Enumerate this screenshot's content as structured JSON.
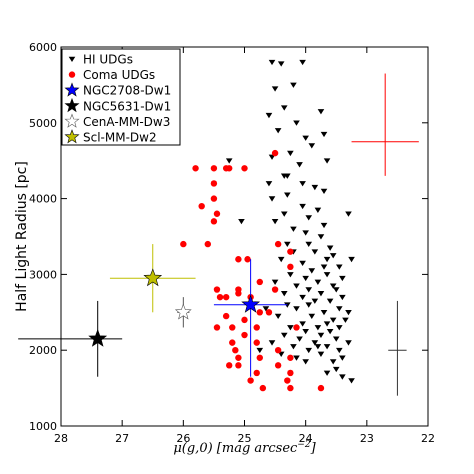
{
  "chart_data": {
    "type": "scatter",
    "xlabel": "μ(g,0) [mag arcsec",
    "xlabel_sup": "−2",
    "xlabel_close": "]",
    "ylabel": "Half Light Radius [pc]",
    "xlim": [
      28,
      22
    ],
    "ylim": [
      1000,
      6000
    ],
    "x_ticks": [
      28,
      27,
      26,
      25,
      24,
      23,
      22
    ],
    "y_ticks": [
      1000,
      2000,
      3000,
      4000,
      5000,
      6000
    ],
    "grid": false,
    "legend_position": "top-left",
    "legend": [
      {
        "label": "HI UDGs",
        "marker": "triangle-down",
        "color": "#000000"
      },
      {
        "label": "Coma UDGs",
        "marker": "circle",
        "color": "#ff0000"
      },
      {
        "label": "NGC2708-Dw1",
        "marker": "star",
        "color": "#0000ff"
      },
      {
        "label": "NGC5631-Dw1",
        "marker": "star",
        "color": "#000000"
      },
      {
        "label": "CenA-MM-Dw3",
        "marker": "star-open",
        "color": "#ffffff"
      },
      {
        "label": "Scl-MM-Dw2",
        "marker": "star",
        "color": "#bfbf00"
      }
    ],
    "series": [
      {
        "name": "HI UDGs",
        "marker": "triangle-down",
        "color": "#000000",
        "points": [
          [
            24.55,
            5800
          ],
          [
            24.4,
            5780
          ],
          [
            24.05,
            5800
          ],
          [
            24.5,
            5450
          ],
          [
            24.2,
            5500
          ],
          [
            24.35,
            5200
          ],
          [
            24.6,
            5100
          ],
          [
            23.75,
            5150
          ],
          [
            24.15,
            5000
          ],
          [
            24.45,
            4900
          ],
          [
            24.0,
            4800
          ],
          [
            23.7,
            4850
          ],
          [
            23.9,
            4700
          ],
          [
            24.25,
            4600
          ],
          [
            24.55,
            4550
          ],
          [
            23.65,
            4500
          ],
          [
            24.1,
            4450
          ],
          [
            24.35,
            4300
          ],
          [
            24.3,
            4300
          ],
          [
            24.6,
            4200
          ],
          [
            24.05,
            4200
          ],
          [
            23.85,
            4150
          ],
          [
            24.3,
            4050
          ],
          [
            23.7,
            4100
          ],
          [
            24.55,
            4000
          ],
          [
            24.05,
            3900
          ],
          [
            23.8,
            3850
          ],
          [
            24.35,
            3800
          ],
          [
            23.3,
            3800
          ],
          [
            23.95,
            3750
          ],
          [
            24.5,
            3700
          ],
          [
            24.2,
            3600
          ],
          [
            23.7,
            3650
          ],
          [
            24.0,
            3550
          ],
          [
            23.75,
            3500
          ],
          [
            24.3,
            3400
          ],
          [
            23.95,
            3400
          ],
          [
            23.6,
            3350
          ],
          [
            24.2,
            3300
          ],
          [
            23.85,
            3300
          ],
          [
            23.55,
            3250
          ],
          [
            24.4,
            3200
          ],
          [
            23.65,
            3200
          ],
          [
            23.25,
            3200
          ],
          [
            24.05,
            3150
          ],
          [
            23.7,
            3100
          ],
          [
            23.45,
            3100
          ],
          [
            23.9,
            3050
          ],
          [
            24.25,
            3000
          ],
          [
            23.65,
            3000
          ],
          [
            24.0,
            2950
          ],
          [
            23.4,
            2950
          ],
          [
            24.5,
            2900
          ],
          [
            23.8,
            2900
          ],
          [
            23.55,
            2850
          ],
          [
            24.15,
            2850
          ],
          [
            23.95,
            2800
          ],
          [
            23.5,
            2800
          ],
          [
            24.35,
            2750
          ],
          [
            23.75,
            2750
          ],
          [
            23.4,
            2700
          ],
          [
            24.05,
            2700
          ],
          [
            23.85,
            2650
          ],
          [
            23.6,
            2650
          ],
          [
            24.3,
            2600
          ],
          [
            23.95,
            2600
          ],
          [
            23.45,
            2550
          ],
          [
            24.15,
            2550
          ],
          [
            23.7,
            2500
          ],
          [
            23.3,
            2500
          ],
          [
            24.45,
            2450
          ],
          [
            23.9,
            2450
          ],
          [
            23.55,
            2400
          ],
          [
            23.35,
            2400
          ],
          [
            24.05,
            2350
          ],
          [
            23.65,
            2350
          ],
          [
            24.25,
            2300
          ],
          [
            23.8,
            2300
          ],
          [
            23.45,
            2300
          ],
          [
            24.0,
            2250
          ],
          [
            23.6,
            2250
          ],
          [
            24.35,
            2200
          ],
          [
            23.75,
            2200
          ],
          [
            24.1,
            2150
          ],
          [
            23.5,
            2150
          ],
          [
            23.85,
            2100
          ],
          [
            23.3,
            2100
          ],
          [
            24.2,
            2050
          ],
          [
            23.65,
            2050
          ],
          [
            23.95,
            2000
          ],
          [
            23.45,
            2000
          ],
          [
            24.4,
            1950
          ],
          [
            23.75,
            1950
          ],
          [
            23.4,
            1900
          ],
          [
            23.55,
            1850
          ],
          [
            24.0,
            1850
          ],
          [
            23.5,
            1750
          ],
          [
            23.65,
            1700
          ],
          [
            23.4,
            1650
          ],
          [
            23.25,
            1600
          ],
          [
            24.75,
            2000
          ],
          [
            24.55,
            2100
          ],
          [
            24.65,
            2550
          ],
          [
            25.05,
            3700
          ],
          [
            25.25,
            4500
          ],
          [
            24.15,
            1900
          ],
          [
            23.8,
            2050
          ]
        ]
      },
      {
        "name": "Coma UDGs",
        "marker": "circle",
        "color": "#ff0000",
        "points": [
          [
            24.5,
            4600
          ],
          [
            25.8,
            4400
          ],
          [
            25.25,
            4400
          ],
          [
            25.5,
            4400
          ],
          [
            25.3,
            4400
          ],
          [
            25.0,
            4400
          ],
          [
            25.5,
            4200
          ],
          [
            25.5,
            4000
          ],
          [
            25.7,
            3900
          ],
          [
            25.45,
            3800
          ],
          [
            25.5,
            3700
          ],
          [
            24.45,
            3400
          ],
          [
            25.6,
            3400
          ],
          [
            26.0,
            3400
          ],
          [
            24.25,
            3300
          ],
          [
            25.1,
            3200
          ],
          [
            24.95,
            3200
          ],
          [
            24.25,
            3100
          ],
          [
            24.75,
            2900
          ],
          [
            25.1,
            2800
          ],
          [
            25.1,
            2750
          ],
          [
            24.9,
            2700
          ],
          [
            24.5,
            2800
          ],
          [
            25.3,
            2700
          ],
          [
            25.45,
            2800
          ],
          [
            25.4,
            2700
          ],
          [
            24.6,
            2500
          ],
          [
            24.75,
            2500
          ],
          [
            25.3,
            2450
          ],
          [
            25.2,
            2300
          ],
          [
            24.8,
            2300
          ],
          [
            25.0,
            2400
          ],
          [
            25.45,
            2300
          ],
          [
            24.8,
            2100
          ],
          [
            24.45,
            2000
          ],
          [
            24.75,
            1900
          ],
          [
            24.25,
            1900
          ],
          [
            25.2,
            2100
          ],
          [
            25.15,
            2000
          ],
          [
            24.8,
            1700
          ],
          [
            24.25,
            1700
          ],
          [
            25.1,
            1900
          ],
          [
            24.9,
            1600
          ],
          [
            25.25,
            1800
          ],
          [
            25.1,
            1800
          ],
          [
            24.45,
            1800
          ],
          [
            24.25,
            1500
          ],
          [
            24.7,
            1500
          ],
          [
            24.3,
            1600
          ],
          [
            23.75,
            1500
          ],
          [
            24.15,
            2300
          ],
          [
            25.0,
            2200
          ]
        ]
      }
    ],
    "highlighted": [
      {
        "name": "NGC2708-Dw1",
        "x": 24.9,
        "y": 2600,
        "xerr": 0.6,
        "yerr_low": 950,
        "yerr_high": 600,
        "color": "#0000ff",
        "fill": "#0000ff",
        "size": 9
      },
      {
        "name": "NGC5631-Dw1",
        "x": 27.4,
        "y": 2150,
        "xerr_low": 0.4,
        "xerr_high": 1.3,
        "yerr_low": 500,
        "yerr_high": 500,
        "color": "#000000",
        "fill": "#000000",
        "size": 9
      },
      {
        "name": "CenA-MM-Dw3",
        "x": 26.0,
        "y": 2500,
        "xerr": 0.1,
        "yerr_low": 200,
        "yerr_high": 200,
        "color": "#555555",
        "fill": "#ffffff",
        "size": 8
      },
      {
        "name": "Scl-MM-Dw2",
        "x": 26.5,
        "y": 2950,
        "xerr": 0.7,
        "yerr_low": 450,
        "yerr_high": 450,
        "color": "#bfbf00",
        "fill": "#bfbf00",
        "size": 9
      }
    ],
    "error_bars": [
      {
        "x": 22.7,
        "y": 4750,
        "xerr": 0.55,
        "yerr_low": 450,
        "yerr_high": 900,
        "color": "#ff0000"
      },
      {
        "x": 22.5,
        "y": 2000,
        "xerr": 0.15,
        "yerr_low": 600,
        "yerr_high": 650,
        "color": "#333333"
      }
    ]
  }
}
